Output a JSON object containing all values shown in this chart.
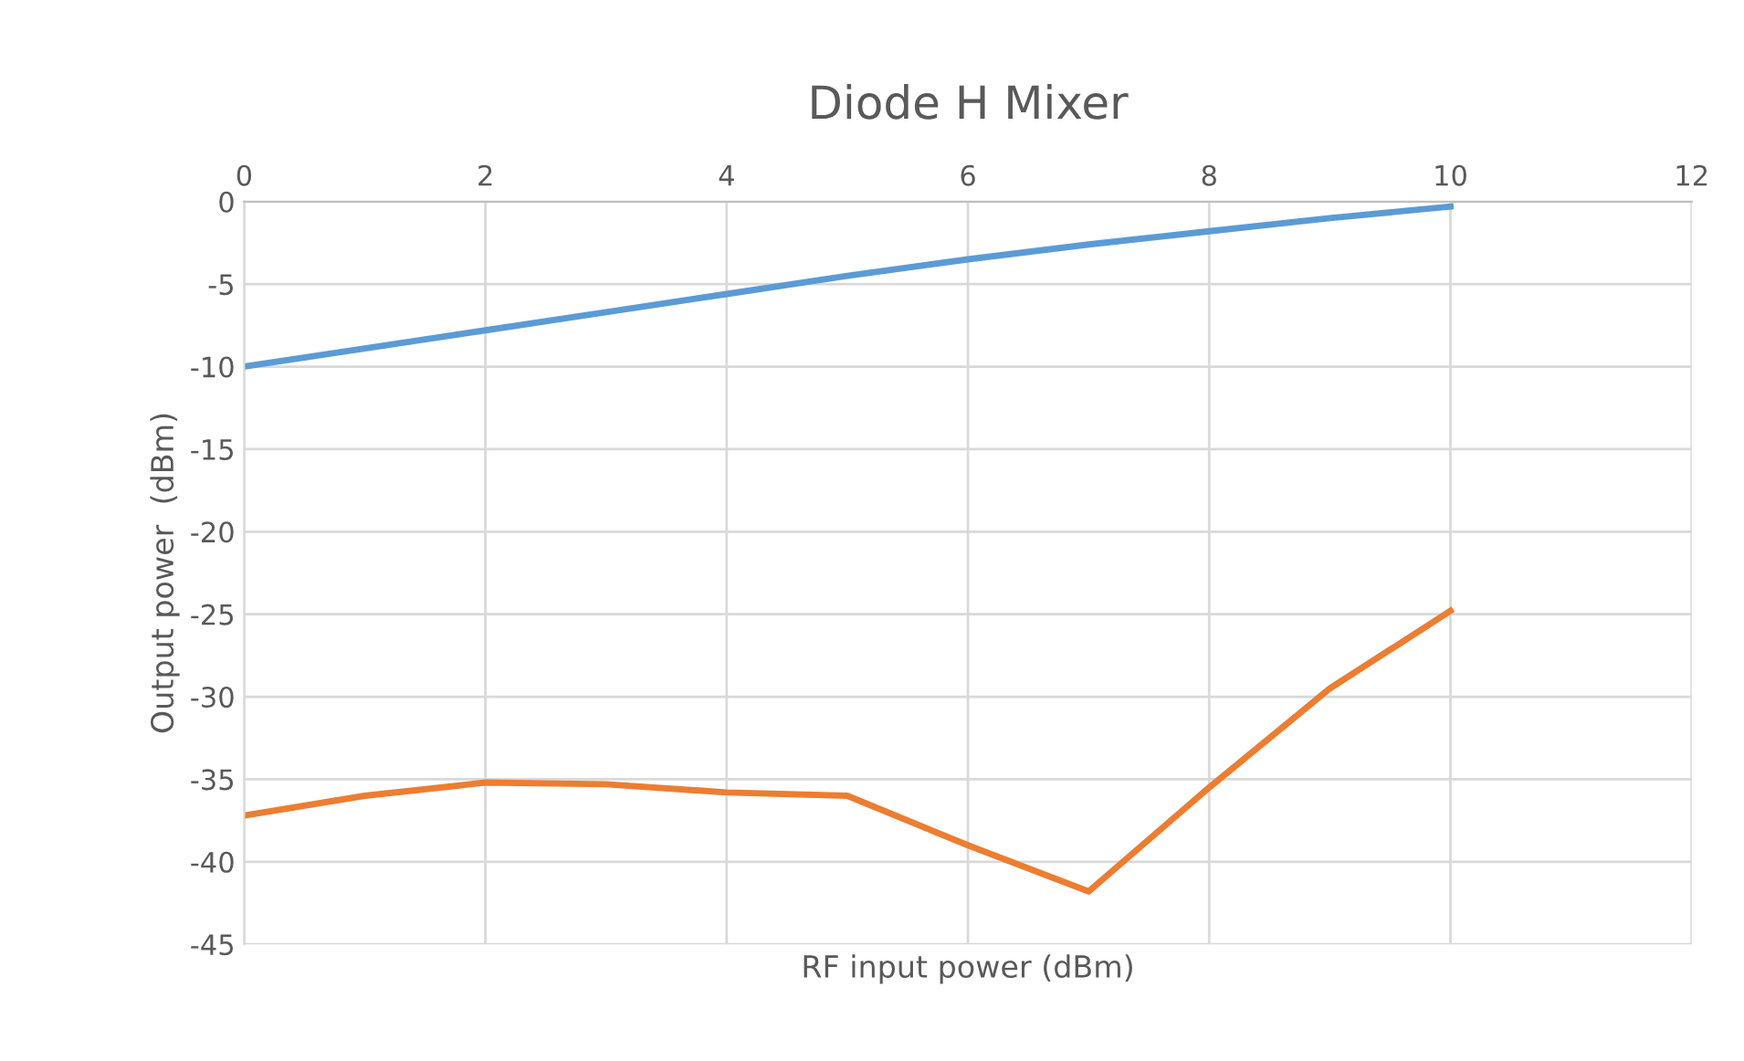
{
  "chart_data": {
    "type": "line",
    "title": "Diode H Mixer",
    "xlabel": "RF input power (dBm)",
    "ylabel": "Output power  (dBm)",
    "x": [
      0,
      1,
      2,
      3,
      4,
      5,
      6,
      7,
      8,
      9,
      10
    ],
    "series": [
      {
        "color": "#5b9bd5",
        "values": [
          -10,
          -8.9,
          -7.8,
          -6.7,
          -5.6,
          -4.5,
          -3.5,
          -2.6,
          -1.8,
          -1.0,
          -0.3
        ]
      },
      {
        "color": "#ed7d31",
        "values": [
          -37.2,
          -36,
          -35.2,
          -35.3,
          -35.8,
          -36,
          -39,
          -41.8,
          -35.5,
          -29.5,
          -24.8
        ]
      }
    ],
    "xlim": [
      0,
      12
    ],
    "xticks": [
      0,
      2,
      4,
      6,
      8,
      10,
      12
    ],
    "ylim": [
      -45,
      0
    ],
    "yticks": [
      -45,
      -40,
      -35,
      -30,
      -25,
      -20,
      -15,
      -10,
      -5,
      0
    ],
    "grid": true,
    "marker": "none",
    "line_style": "solid"
  }
}
